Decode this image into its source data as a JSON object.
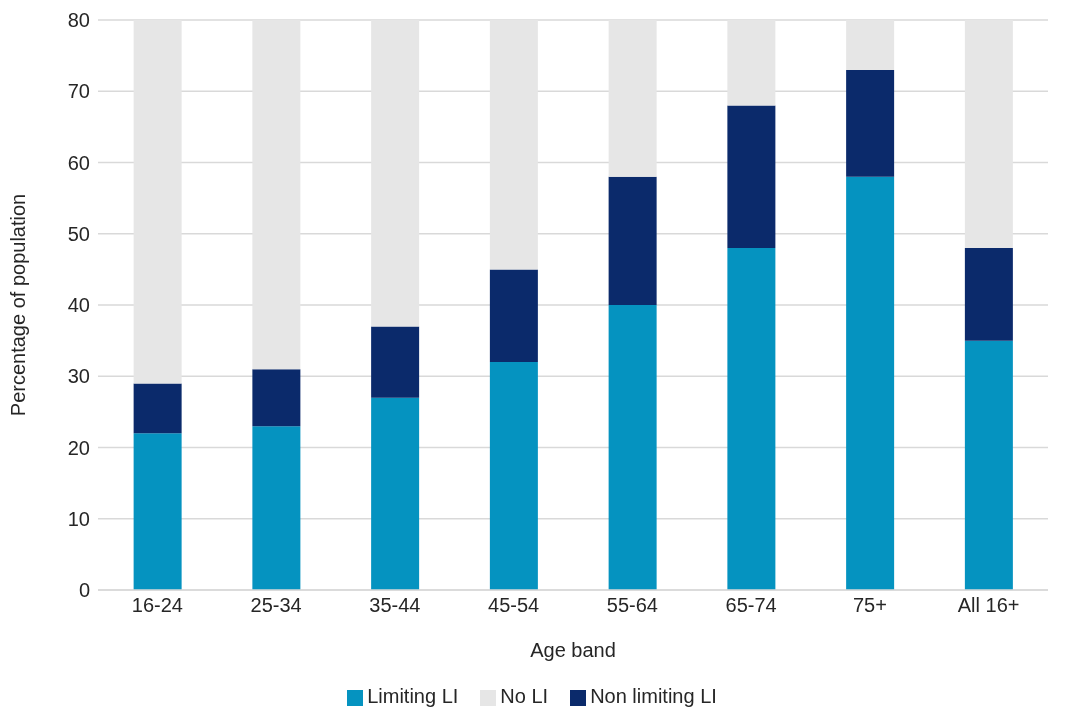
{
  "chart_data": {
    "type": "bar",
    "stacked": true,
    "xlabel": "Age band",
    "ylabel": "Percentage of population",
    "categories": [
      "16-24",
      "25-34",
      "35-44",
      "45-54",
      "55-64",
      "65-74",
      "75+",
      "All 16+"
    ],
    "series": [
      {
        "name": "Limiting LI",
        "color": "#0593c0",
        "values": [
          22,
          23,
          27,
          32,
          40,
          48,
          58,
          35
        ]
      },
      {
        "name": "Non limiting LI",
        "color": "#0b2a6b",
        "values": [
          7,
          8,
          10,
          13,
          18,
          20,
          15,
          13
        ]
      },
      {
        "name": "No LI",
        "color": "#e6e6e6",
        "values": [
          51,
          49,
          43,
          35,
          22,
          12,
          7,
          32
        ]
      }
    ],
    "ylim": [
      0,
      80
    ],
    "yticks": [
      0,
      10,
      20,
      30,
      40,
      50,
      60,
      70,
      80
    ],
    "grid": "y",
    "legend": "bottom"
  }
}
